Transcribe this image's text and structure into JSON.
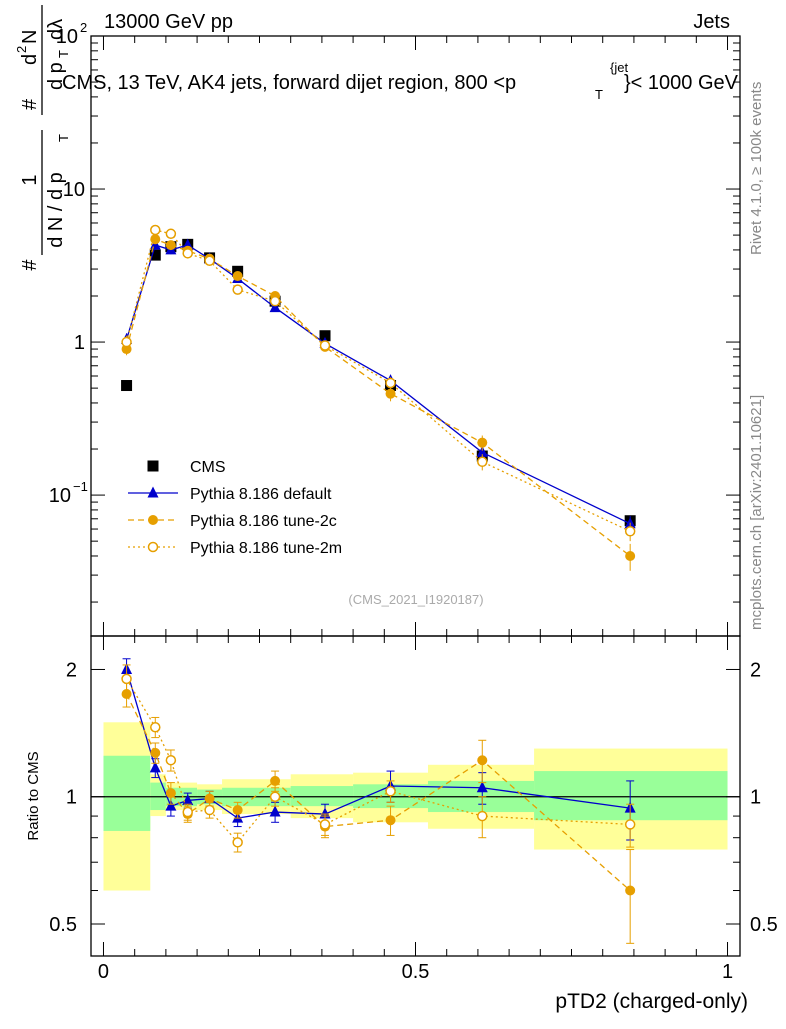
{
  "header": {
    "left": "13000 GeV pp",
    "right": "Jets"
  },
  "side_labels": {
    "rivet": "Rivet 4.1.0, ≥ 100k events",
    "mcplots": "mcplots.cern.ch [arXiv:2401.10621]"
  },
  "colors": {
    "cms": "#000000",
    "default": "#0000cc",
    "tune2c": "#e69f00",
    "tune2m": "#e69f00",
    "band_green": "#99ff99",
    "band_yellow": "#ffff99"
  },
  "chart_data": [
    {
      "type": "line",
      "title": "CMS, 13 TeV, AK4 jets, forward dijet region, 800 <p_T^{jet}< 1000 GeV",
      "ylabel": "# 1/(dN / dp_T #) d²N/(dp_T dλ)",
      "ylabel_parts": {
        "one": "1",
        "den": "d N / d p",
        "sub": "T",
        "hash": "#",
        "num2": "d",
        "sup2": "2",
        "num2b": "N",
        "den2": "d p",
        "den2sub": "T",
        "lam": "dλ"
      },
      "title_parts": {
        "main": "CMS, 13 TeV, AK4 jets, forward dijet region, 800 <p",
        "sub": "T",
        "sup": "{jet",
        "tail": "}< 1000 GeV"
      },
      "yscale": "log",
      "ylim": [
        0.012,
        100
      ],
      "xlim": [
        -0.02,
        1.02
      ],
      "yticks": [
        {
          "v": 0.1,
          "base": "10",
          "exp": "−1"
        },
        {
          "v": 1,
          "base": "1",
          "exp": ""
        },
        {
          "v": 10,
          "base": "10",
          "exp": ""
        },
        {
          "v": 100,
          "base": "10",
          "exp": "2"
        }
      ],
      "watermark": "(CMS_2021_I1920187)",
      "legend_position": "middle-left",
      "bins": [
        [
          0.0,
          0.075
        ],
        [
          0.075,
          0.1
        ],
        [
          0.1,
          0.125
        ],
        [
          0.125,
          0.15
        ],
        [
          0.15,
          0.2
        ],
        [
          0.2,
          0.25
        ],
        [
          0.25,
          0.3
        ],
        [
          0.3,
          0.4
        ],
        [
          0.4,
          0.52
        ],
        [
          0.52,
          0.69
        ],
        [
          0.69,
          1.0
        ]
      ],
      "series": [
        {
          "name": "CMS",
          "style": "square",
          "x": [
            0.037,
            0.083,
            0.108,
            0.135,
            0.17,
            0.215,
            0.275,
            0.355,
            0.46,
            0.607,
            0.844
          ],
          "y": [
            0.52,
            3.7,
            4.2,
            4.35,
            3.55,
            2.9,
            1.85,
            1.1,
            0.52,
            0.18,
            0.068
          ]
        },
        {
          "name": "Pythia 8.186 default",
          "style": "triangle-solid",
          "x": [
            0.037,
            0.083,
            0.108,
            0.135,
            0.17,
            0.215,
            0.275,
            0.355,
            0.46,
            0.607,
            0.844
          ],
          "y": [
            1.04,
            4.3,
            4.0,
            4.3,
            3.5,
            2.6,
            1.68,
            0.98,
            0.56,
            0.19,
            0.065
          ],
          "yerr": [
            0.1,
            0.3,
            0.25,
            0.2,
            0.15,
            0.12,
            0.08,
            0.05,
            0.05,
            0.02,
            0.008
          ]
        },
        {
          "name": "Pythia 8.186 tune-2c",
          "style": "circle-dashed",
          "x": [
            0.037,
            0.083,
            0.108,
            0.135,
            0.17,
            0.215,
            0.275,
            0.355,
            0.46,
            0.607,
            0.844
          ],
          "y": [
            0.9,
            4.7,
            4.3,
            3.95,
            3.5,
            2.7,
            2.0,
            0.93,
            0.46,
            0.22,
            0.04
          ],
          "yerr": [
            0.08,
            0.3,
            0.25,
            0.2,
            0.15,
            0.12,
            0.1,
            0.05,
            0.05,
            0.025,
            0.008
          ]
        },
        {
          "name": "Pythia 8.186 tune-2m",
          "style": "circle-open-dotted",
          "x": [
            0.037,
            0.083,
            0.108,
            0.135,
            0.17,
            0.215,
            0.275,
            0.355,
            0.46,
            0.607,
            0.844
          ],
          "y": [
            1.0,
            5.4,
            5.1,
            3.8,
            3.4,
            2.2,
            1.85,
            0.95,
            0.54,
            0.165,
            0.058
          ],
          "yerr": [
            0.1,
            0.35,
            0.3,
            0.2,
            0.15,
            0.12,
            0.1,
            0.05,
            0.05,
            0.02,
            0.008
          ]
        }
      ]
    },
    {
      "type": "line",
      "ylabel": "Ratio to CMS",
      "xlabel": "pTD2 (charged-only)",
      "yscale": "log",
      "ylim": [
        0.42,
        2.4
      ],
      "xlim": [
        -0.02,
        1.02
      ],
      "yticks": [
        0.5,
        1,
        2
      ],
      "xticks": [
        0,
        0.5,
        1
      ],
      "ytick_labels": [
        "0.5",
        "1",
        "2"
      ],
      "xtick_labels": [
        "0",
        "0.5",
        "1"
      ],
      "bands": [
        {
          "x0": 0.0,
          "x1": 0.075,
          "green": [
            0.83,
            1.25
          ],
          "yellow": [
            0.6,
            1.5
          ]
        },
        {
          "x0": 0.075,
          "x1": 0.1,
          "green": [
            0.93,
            1.08
          ],
          "yellow": [
            0.9,
            1.13
          ]
        },
        {
          "x0": 0.1,
          "x1": 0.15,
          "green": [
            0.95,
            1.05
          ],
          "yellow": [
            0.93,
            1.08
          ]
        },
        {
          "x0": 0.15,
          "x1": 0.19,
          "green": [
            0.96,
            1.04
          ],
          "yellow": [
            0.93,
            1.07
          ]
        },
        {
          "x0": 0.19,
          "x1": 0.3,
          "green": [
            0.95,
            1.05
          ],
          "yellow": [
            0.91,
            1.1
          ]
        },
        {
          "x0": 0.3,
          "x1": 0.4,
          "green": [
            0.95,
            1.06
          ],
          "yellow": [
            0.89,
            1.13
          ]
        },
        {
          "x0": 0.4,
          "x1": 0.52,
          "green": [
            0.94,
            1.07
          ],
          "yellow": [
            0.87,
            1.14
          ]
        },
        {
          "x0": 0.52,
          "x1": 0.69,
          "green": [
            0.92,
            1.09
          ],
          "yellow": [
            0.84,
            1.19
          ]
        },
        {
          "x0": 0.69,
          "x1": 1.0,
          "green": [
            0.88,
            1.15
          ],
          "yellow": [
            0.75,
            1.3
          ]
        }
      ],
      "reference": 1,
      "series": [
        {
          "name": "Pythia 8.186 default",
          "style": "triangle-solid",
          "x": [
            0.037,
            0.083,
            0.108,
            0.135,
            0.17,
            0.215,
            0.275,
            0.355,
            0.46,
            0.607,
            0.844
          ],
          "y": [
            2.0,
            1.17,
            0.95,
            0.98,
            0.99,
            0.89,
            0.92,
            0.91,
            1.06,
            1.05,
            0.94
          ],
          "yerr": [
            0.12,
            0.06,
            0.05,
            0.04,
            0.04,
            0.04,
            0.05,
            0.05,
            0.09,
            0.09,
            0.15
          ]
        },
        {
          "name": "Pythia 8.186 tune-2c",
          "style": "circle-dashed",
          "x": [
            0.037,
            0.083,
            0.108,
            0.135,
            0.17,
            0.215,
            0.275,
            0.355,
            0.46,
            0.607,
            0.844
          ],
          "y": [
            1.75,
            1.27,
            1.02,
            0.91,
            0.99,
            0.93,
            1.09,
            0.85,
            0.88,
            1.22,
            0.6
          ],
          "yerr": [
            0.12,
            0.07,
            0.06,
            0.04,
            0.04,
            0.04,
            0.06,
            0.05,
            0.07,
            0.14,
            0.15
          ]
        },
        {
          "name": "Pythia 8.186 tune-2m",
          "style": "circle-open-dotted",
          "x": [
            0.037,
            0.083,
            0.108,
            0.135,
            0.17,
            0.215,
            0.275,
            0.355,
            0.46,
            0.607,
            0.844
          ],
          "y": [
            1.9,
            1.46,
            1.22,
            0.92,
            0.93,
            0.78,
            1.0,
            0.86,
            1.03,
            0.9,
            0.86
          ],
          "yerr": [
            0.15,
            0.08,
            0.07,
            0.04,
            0.04,
            0.04,
            0.05,
            0.05,
            0.06,
            0.1,
            0.1
          ]
        }
      ]
    }
  ]
}
